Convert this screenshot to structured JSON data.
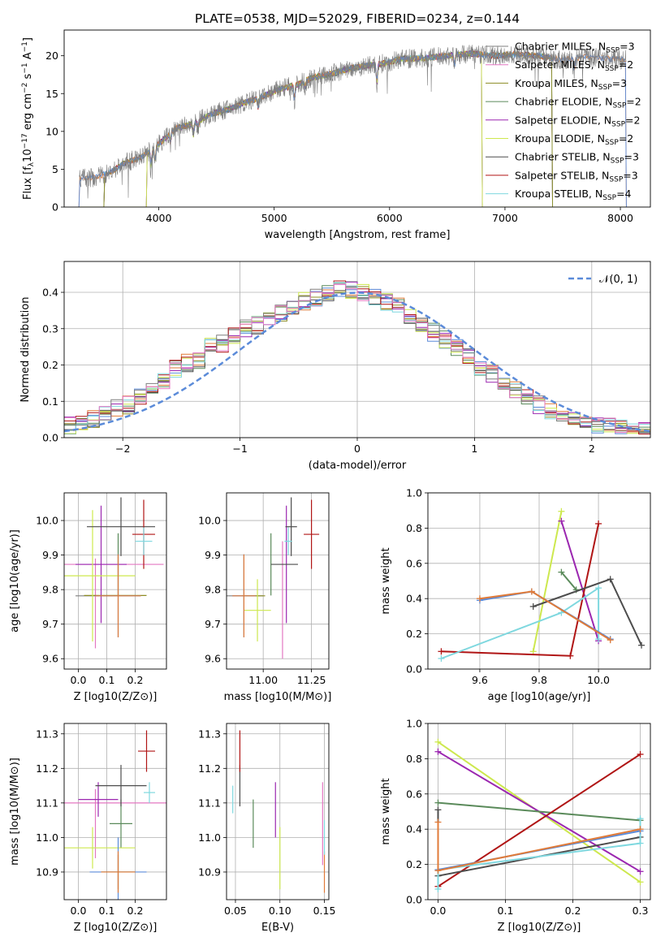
{
  "title": "PLATE=0538, MJD=52029, FIBERID=0234, z=0.144",
  "colors": {
    "chab_miles": "#7f7f7f",
    "salp_miles": "#e377c2",
    "krou_miles": "#8c8c23",
    "chab_elodie": "#5a8a5a",
    "salp_elodie": "#9b27b0",
    "krou_elodie": "#cde84e",
    "chab_stelib": "#4d4d4d",
    "salp_stelib": "#b01515",
    "krou_stelib": "#7fd8df",
    "blue": "#5b8bd9",
    "orange": "#e07b39"
  },
  "chart_data": [
    {
      "id": "spectrum",
      "type": "line",
      "xlabel": "wavelength [Angstrom, rest frame]",
      "ylabel": "Flux [f_λ 10^-17 erg cm^-2 s^-1 A^-1]",
      "xlim": [
        3180,
        8260
      ],
      "ylim": [
        0,
        23.4
      ],
      "xticks": [
        4000,
        5000,
        6000,
        7000,
        8000
      ],
      "yticks": [
        0,
        5,
        10,
        15,
        20
      ],
      "grid": false,
      "legend_position": "top-right",
      "legend": [
        {
          "label": "Chabrier MILES, N",
          "sub": "SSP",
          "suffix": "=3",
          "key": "chab_miles"
        },
        {
          "label": "Salpeter MILES, N",
          "sub": "SSP",
          "suffix": "=2",
          "key": "salp_miles"
        },
        {
          "label": "Kroupa MILES, N",
          "sub": "SSP",
          "suffix": "=3",
          "key": "krou_miles"
        },
        {
          "label": "Chabrier ELODIE, N",
          "sub": "SSP",
          "suffix": "=2",
          "key": "chab_elodie"
        },
        {
          "label": "Salpeter ELODIE, N",
          "sub": "SSP",
          "suffix": "=2",
          "key": "salp_elodie"
        },
        {
          "label": "Kroupa ELODIE, N",
          "sub": "SSP",
          "suffix": "=2",
          "key": "krou_elodie"
        },
        {
          "label": "Chabrier STELIB, N",
          "sub": "SSP",
          "suffix": "=3",
          "key": "chab_stelib"
        },
        {
          "label": "Salpeter STELIB, N",
          "sub": "SSP",
          "suffix": "=3",
          "key": "salp_stelib"
        },
        {
          "label": "Kroupa STELIB, N",
          "sub": "SSP",
          "suffix": "=4",
          "key": "krou_stelib"
        }
      ],
      "continuum": [
        [
          3310,
          3.8
        ],
        [
          3450,
          3.9
        ],
        [
          3580,
          4.6
        ],
        [
          3700,
          5.8
        ],
        [
          3850,
          6.6
        ],
        [
          3950,
          7.7
        ],
        [
          4050,
          9.0
        ],
        [
          4150,
          10.4
        ],
        [
          4300,
          11.0
        ],
        [
          4450,
          12.3
        ],
        [
          4600,
          12.9
        ],
        [
          4750,
          13.8
        ],
        [
          4900,
          14.6
        ],
        [
          5050,
          15.6
        ],
        [
          5200,
          16.2
        ],
        [
          5350,
          17.2
        ],
        [
          5500,
          17.6
        ],
        [
          5650,
          18.3
        ],
        [
          5800,
          18.7
        ],
        [
          5950,
          19.0
        ],
        [
          6100,
          19.6
        ],
        [
          6300,
          19.7
        ],
        [
          6500,
          20.0
        ],
        [
          6700,
          20.3
        ],
        [
          6900,
          20.0
        ],
        [
          7100,
          20.2
        ],
        [
          7300,
          20.0
        ],
        [
          7500,
          19.4
        ],
        [
          7700,
          19.9
        ],
        [
          7900,
          19.6
        ],
        [
          8050,
          19.5
        ]
      ],
      "model_ranges": {
        "chab_stelib": [
          3530,
          7410
        ],
        "salp_stelib": [
          3530,
          7410
        ],
        "krou_stelib": [
          3530,
          7410
        ],
        "krou_miles": [
          3530,
          7410
        ],
        "chab_elodie": [
          3900,
          6800
        ],
        "salp_elodie": [
          3900,
          6800
        ],
        "krou_elodie": [
          3900,
          6800
        ]
      }
    },
    {
      "id": "residual-distribution",
      "type": "histogram",
      "xlabel": "(data-model)/error",
      "ylabel": "Normed distribution",
      "xlim": [
        -2.5,
        2.5
      ],
      "ylim": [
        0,
        0.485
      ],
      "xticks": [
        -2,
        -1,
        0,
        1,
        2
      ],
      "yticks": [
        0.0,
        0.1,
        0.2,
        0.3,
        0.4
      ],
      "grid": true,
      "bin_width": 0.1,
      "gaussian_label": "𝒩(0, 1)",
      "legend_position": "top-right",
      "base_hist": [
        0.035,
        0.045,
        0.05,
        0.07,
        0.08,
        0.09,
        0.11,
        0.13,
        0.16,
        0.19,
        0.205,
        0.215,
        0.25,
        0.26,
        0.28,
        0.3,
        0.31,
        0.32,
        0.345,
        0.36,
        0.375,
        0.385,
        0.4,
        0.41,
        0.405,
        0.4,
        0.39,
        0.375,
        0.36,
        0.335,
        0.31,
        0.29,
        0.27,
        0.245,
        0.22,
        0.195,
        0.175,
        0.15,
        0.13,
        0.11,
        0.09,
        0.075,
        0.06,
        0.05,
        0.04,
        0.035,
        0.03,
        0.028,
        0.025,
        0.022
      ]
    },
    {
      "id": "age-vs-Z",
      "type": "errorbar",
      "xlabel": "Z [log10(Z/Z⊙)]",
      "ylabel": "age [log10(age/yr)]",
      "xlim": [
        -0.05,
        0.31
      ],
      "ylim": [
        9.57,
        10.08
      ],
      "xticks": [
        0.0,
        0.1,
        0.2
      ],
      "yticks": [
        9.6,
        9.7,
        9.8,
        9.9,
        10.0
      ],
      "grid": true,
      "points": [
        {
          "key": "chab_miles",
          "x": 0.055,
          "xerr": 0.065,
          "y": 9.782,
          "yerr": 0.0
        },
        {
          "key": "salp_miles",
          "x": 0.06,
          "xerr": 0.0,
          "y": 9.76,
          "yerr": 0.13
        },
        {
          "key": "salp_miles",
          "x": 0.1,
          "xerr": 0.2,
          "y": 9.873,
          "yerr": 0.0
        },
        {
          "key": "krou_miles",
          "x": 0.13,
          "xerr": 0.11,
          "y": 9.783,
          "yerr": 0.0
        },
        {
          "key": "chab_elodie",
          "x": 0.14,
          "xerr": 0.0,
          "y": 9.873,
          "yerr": 0.09
        },
        {
          "key": "salp_elodie",
          "x": 0.08,
          "xerr": 0.09,
          "y": 9.873,
          "yerr": 0.17
        },
        {
          "key": "krou_elodie",
          "x": 0.05,
          "xerr": 0.15,
          "y": 9.84,
          "yerr": 0.19
        },
        {
          "key": "chab_stelib",
          "x": 0.15,
          "xerr": 0.12,
          "y": 9.982,
          "yerr": 0.085
        },
        {
          "key": "salp_stelib",
          "x": 0.23,
          "xerr": 0.04,
          "y": 9.96,
          "yerr": 0.1
        },
        {
          "key": "krou_stelib",
          "x": 0.23,
          "xerr": 0.03,
          "y": 9.94,
          "yerr": 0.04
        },
        {
          "key": "blue",
          "x": 0.14,
          "xerr": 0.08,
          "y": 9.782,
          "yerr": 0.12
        },
        {
          "key": "orange",
          "x": 0.14,
          "xerr": 0.08,
          "y": 9.782,
          "yerr": 0.12
        }
      ]
    },
    {
      "id": "age-vs-mass",
      "type": "errorbar",
      "xlabel": "mass [log10(M/M⊙)]",
      "ylabel": "",
      "xlim": [
        10.81,
        11.34
      ],
      "ylim": [
        9.57,
        10.08
      ],
      "xticks": [
        11.0,
        11.25
      ],
      "yticks": [
        9.6,
        9.7,
        9.8,
        9.9,
        10.0
      ],
      "grid": true,
      "points": [
        {
          "key": "chab_miles",
          "x": 10.9,
          "xerr": 0.1,
          "y": 9.782,
          "yerr": 0.0
        },
        {
          "key": "salp_miles",
          "x": 11.1,
          "xerr": 0.0,
          "y": 9.77,
          "yerr": 0.17
        },
        {
          "key": "krou_miles",
          "x": 10.95,
          "xerr": 0.06,
          "y": 9.782,
          "yerr": 0.0
        },
        {
          "key": "chab_elodie",
          "x": 11.04,
          "xerr": 0.0,
          "y": 9.873,
          "yerr": 0.09
        },
        {
          "key": "salp_elodie",
          "x": 11.12,
          "xerr": 0.0,
          "y": 9.873,
          "yerr": 0.17
        },
        {
          "key": "krou_elodie",
          "x": 10.97,
          "xerr": 0.07,
          "y": 9.74,
          "yerr": 0.09
        },
        {
          "key": "chab_stelib",
          "x": 11.145,
          "xerr": 0.03,
          "y": 9.982,
          "yerr": 0.085
        },
        {
          "key": "chab_stelib",
          "x": 11.11,
          "xerr": 0.07,
          "y": 9.873,
          "yerr": 0.0
        },
        {
          "key": "salp_stelib",
          "x": 11.25,
          "xerr": 0.04,
          "y": 9.96,
          "yerr": 0.1
        },
        {
          "key": "krou_stelib",
          "x": 11.13,
          "xerr": 0.02,
          "y": 9.94,
          "yerr": 0.04
        },
        {
          "key": "blue",
          "x": 10.9,
          "xerr": 0.06,
          "y": 9.782,
          "yerr": 0.12
        },
        {
          "key": "orange",
          "x": 10.9,
          "xerr": 0.06,
          "y": 9.782,
          "yerr": 0.12
        }
      ]
    },
    {
      "id": "weight-vs-age",
      "type": "line",
      "xlabel": "age [log10(age/yr)]",
      "ylabel": "mass weight",
      "xlim": [
        9.425,
        10.175
      ],
      "ylim": [
        0,
        1.0
      ],
      "xticks": [
        9.6,
        9.8,
        10.0
      ],
      "yticks": [
        0.0,
        0.2,
        0.4,
        0.6,
        0.8,
        1.0
      ],
      "grid": true,
      "series": [
        {
          "key": "krou_elodie",
          "points": [
            [
              9.78,
              0.1
            ],
            [
              9.875,
              0.895
            ]
          ]
        },
        {
          "key": "salp_elodie",
          "points": [
            [
              9.875,
              0.84
            ],
            [
              10.0,
              0.16
            ]
          ]
        },
        {
          "key": "chab_elodie",
          "points": [
            [
              9.875,
              0.55
            ],
            [
              9.925,
              0.45
            ]
          ]
        },
        {
          "key": "salp_stelib",
          "points": [
            [
              9.47,
              0.1
            ],
            [
              9.905,
              0.075
            ],
            [
              10.0,
              0.825
            ]
          ]
        },
        {
          "key": "chab_stelib",
          "points": [
            [
              9.78,
              0.355
            ],
            [
              10.04,
              0.51
            ],
            [
              10.145,
              0.135
            ]
          ]
        },
        {
          "key": "krou_stelib",
          "points": [
            [
              9.47,
              0.06
            ],
            [
              9.875,
              0.32
            ],
            [
              10.0,
              0.46
            ],
            [
              10.0,
              0.17
            ]
          ]
        },
        {
          "key": "blue",
          "points": [
            [
              9.6,
              0.39
            ],
            [
              9.775,
              0.44
            ],
            [
              10.04,
              0.17
            ]
          ]
        },
        {
          "key": "orange",
          "points": [
            [
              9.6,
              0.4
            ],
            [
              9.775,
              0.44
            ],
            [
              10.04,
              0.165
            ]
          ]
        }
      ]
    },
    {
      "id": "mass-vs-Z",
      "type": "errorbar",
      "xlabel": "Z [log10(Z/Z⊙)]",
      "ylabel": "mass [log10(M/M⊙)]",
      "xlim": [
        -0.05,
        0.31
      ],
      "ylim": [
        10.82,
        11.33
      ],
      "xticks": [
        0.0,
        0.1,
        0.2
      ],
      "yticks": [
        10.9,
        11.0,
        11.1,
        11.2,
        11.3
      ],
      "grid": true,
      "points": [
        {
          "key": "salp_miles",
          "x": 0.1,
          "xerr": 0.21,
          "y": 11.1,
          "yerr": 0.0
        },
        {
          "key": "salp_miles",
          "x": 0.06,
          "xerr": 0.0,
          "y": 11.04,
          "yerr": 0.1
        },
        {
          "key": "krou_miles",
          "x": 0.14,
          "xerr": 0.06,
          "y": 10.9,
          "yerr": 0.05
        },
        {
          "key": "chab_elodie",
          "x": 0.15,
          "xerr": 0.04,
          "y": 11.04,
          "yerr": 0.07
        },
        {
          "key": "salp_elodie",
          "x": 0.07,
          "xerr": 0.07,
          "y": 11.11,
          "yerr": 0.05
        },
        {
          "key": "krou_elodie",
          "x": 0.05,
          "xerr": 0.15,
          "y": 10.97,
          "yerr": 0.06
        },
        {
          "key": "chab_stelib",
          "x": 0.15,
          "xerr": 0.09,
          "y": 11.15,
          "yerr": 0.06
        },
        {
          "key": "salp_stelib",
          "x": 0.24,
          "xerr": 0.03,
          "y": 11.25,
          "yerr": 0.06
        },
        {
          "key": "krou_stelib",
          "x": 0.25,
          "xerr": 0.02,
          "y": 11.13,
          "yerr": 0.03
        },
        {
          "key": "blue",
          "x": 0.14,
          "xerr": 0.1,
          "y": 10.9,
          "yerr": 0.1
        },
        {
          "key": "orange",
          "x": 0.14,
          "xerr": 0.06,
          "y": 10.9,
          "yerr": 0.06
        }
      ]
    },
    {
      "id": "mass-vs-EBV",
      "type": "errorbar",
      "xlabel": "E(B-V)",
      "ylabel": "",
      "xlim": [
        0.04,
        0.155
      ],
      "ylim": [
        10.82,
        11.33
      ],
      "xticks": [
        0.05,
        0.1,
        0.15
      ],
      "yticks": [
        10.9,
        11.0,
        11.1,
        11.2,
        11.3
      ],
      "grid": true,
      "points": [
        {
          "key": "krou_stelib",
          "x": 0.047,
          "xerr": 0.0,
          "y": 11.11,
          "yerr": 0.04
        },
        {
          "key": "chab_stelib",
          "x": 0.055,
          "xerr": 0.0,
          "y": 11.15,
          "yerr": 0.06
        },
        {
          "key": "salp_stelib",
          "x": 0.055,
          "xerr": 0.0,
          "y": 11.25,
          "yerr": 0.06
        },
        {
          "key": "chab_elodie",
          "x": 0.07,
          "xerr": 0.0,
          "y": 11.04,
          "yerr": 0.07
        },
        {
          "key": "salp_elodie",
          "x": 0.095,
          "xerr": 0.0,
          "y": 11.08,
          "yerr": 0.08
        },
        {
          "key": "krou_elodie",
          "x": 0.1,
          "xerr": 0.0,
          "y": 10.94,
          "yerr": 0.09
        },
        {
          "key": "salp_miles",
          "x": 0.148,
          "xerr": 0.0,
          "y": 11.04,
          "yerr": 0.12
        },
        {
          "key": "orange",
          "x": 0.15,
          "xerr": 0.0,
          "y": 10.9,
          "yerr": 0.06
        },
        {
          "key": "krou_stelib",
          "x": 0.15,
          "xerr": 0.0,
          "y": 11.0,
          "yerr": 0.05
        }
      ]
    },
    {
      "id": "weight-vs-Z",
      "type": "line",
      "xlabel": "Z [log10(Z/Z⊙)]",
      "ylabel": "mass weight",
      "xlim": [
        -0.015,
        0.315
      ],
      "ylim": [
        0,
        1.0
      ],
      "xticks": [
        0.0,
        0.1,
        0.2,
        0.3
      ],
      "yticks": [
        0.0,
        0.2,
        0.4,
        0.6,
        0.8,
        1.0
      ],
      "grid": true,
      "series": [
        {
          "key": "krou_elodie",
          "points": [
            [
              0.0,
              0.895
            ],
            [
              0.3,
              0.1
            ]
          ]
        },
        {
          "key": "salp_elodie",
          "points": [
            [
              0.0,
              0.84
            ],
            [
              0.3,
              0.16
            ]
          ]
        },
        {
          "key": "chab_elodie",
          "points": [
            [
              0.0,
              0.55
            ],
            [
              0.3,
              0.45
            ]
          ]
        },
        {
          "key": "salp_stelib",
          "points": [
            [
              0.0,
              0.075
            ],
            [
              0.3,
              0.825
            ]
          ]
        },
        {
          "key": "chab_stelib",
          "points": [
            [
              0.0,
              0.51
            ],
            [
              0.0,
              0.135
            ],
            [
              0.3,
              0.355
            ]
          ]
        },
        {
          "key": "krou_stelib",
          "points": [
            [
              0.0,
              0.06
            ],
            [
              0.0,
              0.17
            ],
            [
              0.3,
              0.32
            ],
            [
              0.3,
              0.46
            ]
          ]
        },
        {
          "key": "blue",
          "points": [
            [
              0.0,
              0.17
            ],
            [
              0.3,
              0.39
            ]
          ]
        },
        {
          "key": "orange",
          "points": [
            [
              0.0,
              0.44
            ],
            [
              0.0,
              0.165
            ],
            [
              0.3,
              0.4
            ]
          ]
        }
      ]
    }
  ]
}
